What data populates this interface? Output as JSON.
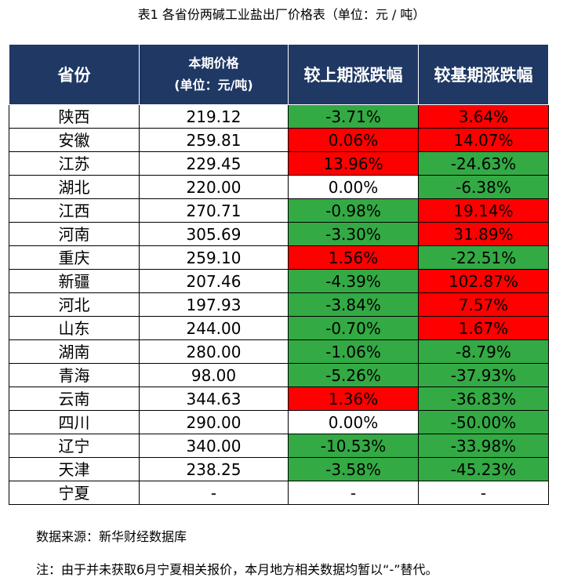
{
  "title": "表1 各省份两碱工业盐出厂价格表（单位：元 / 吨）",
  "header": {
    "province": "省份",
    "price_line1": "本期价格",
    "price_line2": "(单位：元/吨)",
    "mom": "较上期涨跌幅",
    "yoy": "较基期涨跌幅"
  },
  "colors": {
    "header_bg": "#1f3864",
    "up": "#ff0000",
    "down": "#33aa44",
    "flat": "#ffffff"
  },
  "rows": [
    {
      "province": "陕西",
      "price": "219.12",
      "mom": "-3.71%",
      "mom_color": "down",
      "yoy": "3.64%",
      "yoy_color": "up"
    },
    {
      "province": "安徽",
      "price": "259.81",
      "mom": "0.06%",
      "mom_color": "up",
      "yoy": "14.07%",
      "yoy_color": "up"
    },
    {
      "province": "江苏",
      "price": "229.45",
      "mom": "13.96%",
      "mom_color": "up",
      "yoy": "-24.63%",
      "yoy_color": "down"
    },
    {
      "province": "湖北",
      "price": "220.00",
      "mom": "0.00%",
      "mom_color": "flat",
      "yoy": "-6.38%",
      "yoy_color": "down"
    },
    {
      "province": "江西",
      "price": "270.71",
      "mom": "-0.98%",
      "mom_color": "down",
      "yoy": "19.14%",
      "yoy_color": "up"
    },
    {
      "province": "河南",
      "price": "305.69",
      "mom": "-3.30%",
      "mom_color": "down",
      "yoy": "31.89%",
      "yoy_color": "up"
    },
    {
      "province": "重庆",
      "price": "259.10",
      "mom": "1.56%",
      "mom_color": "up",
      "yoy": "-22.51%",
      "yoy_color": "down"
    },
    {
      "province": "新疆",
      "price": "207.46",
      "mom": "-4.39%",
      "mom_color": "down",
      "yoy": "102.87%",
      "yoy_color": "up"
    },
    {
      "province": "河北",
      "price": "197.93",
      "mom": "-3.84%",
      "mom_color": "down",
      "yoy": "7.57%",
      "yoy_color": "up"
    },
    {
      "province": "山东",
      "price": "244.00",
      "mom": "-0.70%",
      "mom_color": "down",
      "yoy": "1.67%",
      "yoy_color": "up"
    },
    {
      "province": "湖南",
      "price": "280.00",
      "mom": "-1.06%",
      "mom_color": "down",
      "yoy": "-8.79%",
      "yoy_color": "down"
    },
    {
      "province": "青海",
      "price": "98.00",
      "mom": "-5.26%",
      "mom_color": "down",
      "yoy": "-37.93%",
      "yoy_color": "down"
    },
    {
      "province": "云南",
      "price": "344.63",
      "mom": "1.36%",
      "mom_color": "up",
      "yoy": "-36.83%",
      "yoy_color": "down"
    },
    {
      "province": "四川",
      "price": "290.00",
      "mom": "0.00%",
      "mom_color": "flat",
      "yoy": "-50.00%",
      "yoy_color": "down"
    },
    {
      "province": "辽宁",
      "price": "340.00",
      "mom": "-10.53%",
      "mom_color": "down",
      "yoy": "-33.98%",
      "yoy_color": "down"
    },
    {
      "province": "天津",
      "price": "238.25",
      "mom": "-3.58%",
      "mom_color": "down",
      "yoy": "-45.23%",
      "yoy_color": "down"
    },
    {
      "province": "宁夏",
      "price": "-",
      "mom": "-",
      "mom_color": "flat",
      "yoy": "-",
      "yoy_color": "flat"
    }
  ],
  "footer": {
    "source": "数据来源：新华财经数据库",
    "note": "注：由于并未获取6月宁夏相关报价，本月地方相关数据均暂以“-”替代。"
  }
}
